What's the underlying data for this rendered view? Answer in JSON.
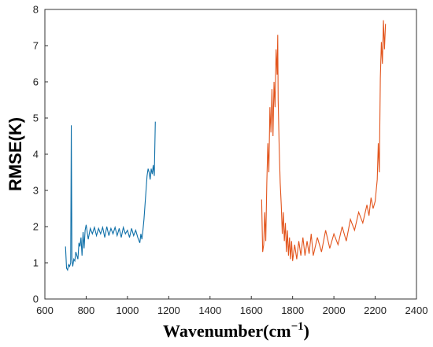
{
  "chart_data": {
    "type": "line",
    "xlabel": "Wavenumber(cm",
    "xlabel_sup": "−1",
    "xlabel_close": ")",
    "ylabel": "RMSE(K)",
    "xlim": [
      600,
      2400
    ],
    "ylim": [
      0,
      8
    ],
    "xticks": [
      "600",
      "800",
      "1000",
      "1200",
      "1400",
      "1600",
      "1800",
      "2000",
      "2200",
      "2400"
    ],
    "yticks": [
      "0",
      "1",
      "2",
      "3",
      "4",
      "5",
      "6",
      "7",
      "8"
    ],
    "grid": false,
    "legend": "none",
    "series": [
      {
        "color": "#0e6fa8",
        "x": [
          700,
          705,
          710,
          715,
          720,
          725,
          728,
          731,
          735,
          740,
          745,
          750,
          755,
          760,
          765,
          770,
          775,
          780,
          785,
          790,
          795,
          800,
          810,
          820,
          830,
          840,
          850,
          860,
          870,
          880,
          890,
          900,
          910,
          920,
          930,
          940,
          950,
          960,
          970,
          980,
          990,
          1000,
          1010,
          1020,
          1030,
          1040,
          1050,
          1060,
          1065,
          1070,
          1075,
          1080,
          1085,
          1090,
          1095,
          1100,
          1105,
          1110,
          1115,
          1120,
          1125,
          1130,
          1135
        ],
        "y": [
          1.45,
          0.85,
          0.8,
          0.95,
          0.9,
          1.0,
          4.8,
          1.1,
          0.9,
          1.1,
          1.05,
          1.3,
          1.2,
          1.1,
          1.55,
          1.45,
          1.7,
          1.2,
          1.85,
          1.4,
          1.9,
          2.05,
          1.65,
          1.95,
          1.8,
          1.98,
          1.75,
          1.95,
          1.8,
          1.98,
          1.7,
          2.0,
          1.75,
          1.95,
          1.8,
          1.98,
          1.75,
          1.95,
          1.7,
          1.98,
          1.8,
          1.9,
          1.7,
          1.95,
          1.75,
          1.9,
          1.7,
          1.55,
          1.8,
          1.65,
          1.9,
          2.2,
          2.6,
          3.0,
          3.4,
          3.6,
          3.5,
          3.3,
          3.6,
          3.45,
          3.7,
          3.4,
          4.9
        ]
      },
      {
        "color": "#e2541c",
        "x": [
          1650,
          1655,
          1660,
          1665,
          1670,
          1675,
          1680,
          1685,
          1690,
          1695,
          1700,
          1705,
          1710,
          1715,
          1720,
          1725,
          1728,
          1730,
          1735,
          1740,
          1745,
          1750,
          1755,
          1760,
          1765,
          1770,
          1775,
          1780,
          1785,
          1790,
          1795,
          1800,
          1810,
          1820,
          1830,
          1840,
          1850,
          1860,
          1870,
          1880,
          1890,
          1900,
          1920,
          1940,
          1960,
          1980,
          2000,
          2020,
          2040,
          2060,
          2080,
          2100,
          2120,
          2140,
          2160,
          2170,
          2180,
          2190,
          2200,
          2205,
          2210,
          2215,
          2220,
          2225,
          2230,
          2235,
          2240,
          2245,
          2250
        ],
        "y": [
          2.75,
          1.3,
          1.5,
          2.4,
          1.6,
          3.2,
          4.3,
          3.5,
          5.3,
          4.6,
          5.8,
          4.5,
          6.0,
          5.3,
          6.9,
          6.2,
          7.3,
          5.5,
          4.2,
          3.2,
          2.6,
          1.8,
          2.4,
          1.6,
          2.1,
          1.3,
          1.9,
          1.2,
          1.7,
          1.1,
          1.6,
          1.05,
          1.5,
          1.1,
          1.6,
          1.2,
          1.7,
          1.2,
          1.6,
          1.25,
          1.8,
          1.2,
          1.7,
          1.3,
          1.9,
          1.4,
          1.8,
          1.5,
          2.0,
          1.6,
          2.2,
          1.9,
          2.4,
          2.1,
          2.6,
          2.3,
          2.8,
          2.5,
          2.7,
          3.0,
          3.3,
          4.3,
          3.5,
          6.1,
          7.1,
          6.5,
          7.7,
          6.9,
          7.6
        ]
      }
    ]
  }
}
